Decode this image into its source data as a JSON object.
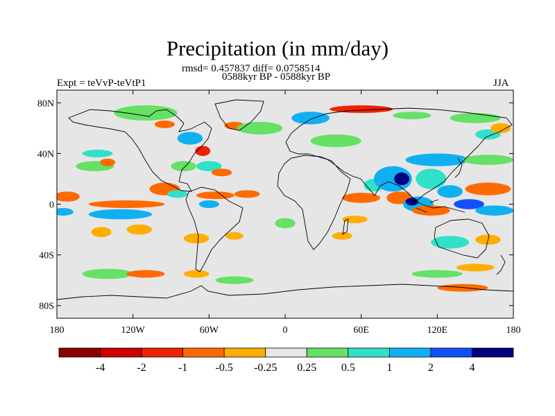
{
  "title": "Precipitation (in mm/day)",
  "stats": "rmsd= 0.457837 diff= 0.0758514",
  "period": "0588kyr BP - 0588kyr BP",
  "experiment": "Expt = teVvP-teVtP1",
  "season": "JJA",
  "chart_data": {
    "type": "heatmap",
    "projection": "cylindrical-equidistant",
    "xlim": [
      -180,
      180
    ],
    "ylim": [
      -90,
      90
    ],
    "x_ticks": [
      {
        "value": -180,
        "label": "180"
      },
      {
        "value": -120,
        "label": "120W"
      },
      {
        "value": -60,
        "label": "60W"
      },
      {
        "value": 0,
        "label": "0"
      },
      {
        "value": 60,
        "label": "60E"
      },
      {
        "value": 120,
        "label": "120E"
      },
      {
        "value": 180,
        "label": "180"
      }
    ],
    "y_ticks": [
      {
        "value": 80,
        "label": "80N"
      },
      {
        "value": 40,
        "label": "40N"
      },
      {
        "value": 0,
        "label": "0"
      },
      {
        "value": -40,
        "label": "40S"
      },
      {
        "value": -80,
        "label": "80S"
      }
    ],
    "colorbar": {
      "labels": [
        "-4",
        "-2",
        "-1",
        "-0.5",
        "-0.25",
        "0.25",
        "0.5",
        "1",
        "2",
        "4"
      ],
      "colors": [
        "#8b0000",
        "#cc0000",
        "#ee2200",
        "#ff6a00",
        "#ffae00",
        "#e6e6e6",
        "#66e066",
        "#30e0c8",
        "#10b0f0",
        "#1050ff",
        "#000080"
      ]
    },
    "background_color": "#e6e6e6",
    "anomalies": [
      {
        "lon": -172,
        "lat": 6,
        "rx": 10,
        "ry": 4,
        "bin": 3
      },
      {
        "lon": -175,
        "lat": -6,
        "rx": 8,
        "ry": 3,
        "bin": 8
      },
      {
        "lon": -150,
        "lat": 30,
        "rx": 15,
        "ry": 4,
        "bin": 6
      },
      {
        "lon": -148,
        "lat": 40,
        "rx": 12,
        "ry": 3,
        "bin": 7
      },
      {
        "lon": -140,
        "lat": 33,
        "rx": 6,
        "ry": 3,
        "bin": 3
      },
      {
        "lon": -125,
        "lat": 0,
        "rx": 30,
        "ry": 3,
        "bin": 3
      },
      {
        "lon": -130,
        "lat": -8,
        "rx": 25,
        "ry": 4,
        "bin": 8
      },
      {
        "lon": -95,
        "lat": 12,
        "rx": 12,
        "ry": 5,
        "bin": 3
      },
      {
        "lon": -85,
        "lat": 8,
        "rx": 8,
        "ry": 3,
        "bin": 7
      },
      {
        "lon": -55,
        "lat": 7,
        "rx": 15,
        "ry": 3,
        "bin": 3
      },
      {
        "lon": -60,
        "lat": 0,
        "rx": 8,
        "ry": 3,
        "bin": 8
      },
      {
        "lon": -115,
        "lat": -20,
        "rx": 10,
        "ry": 4,
        "bin": 4
      },
      {
        "lon": -145,
        "lat": -22,
        "rx": 8,
        "ry": 4,
        "bin": 4
      },
      {
        "lon": -70,
        "lat": -27,
        "rx": 10,
        "ry": 4,
        "bin": 4
      },
      {
        "lon": -40,
        "lat": -25,
        "rx": 7,
        "ry": 3,
        "bin": 4
      },
      {
        "lon": -140,
        "lat": -55,
        "rx": 20,
        "ry": 4,
        "bin": 6
      },
      {
        "lon": -110,
        "lat": -55,
        "rx": 15,
        "ry": 3,
        "bin": 3
      },
      {
        "lon": -70,
        "lat": -55,
        "rx": 10,
        "ry": 3,
        "bin": 4
      },
      {
        "lon": -40,
        "lat": -60,
        "rx": 15,
        "ry": 3,
        "bin": 6
      },
      {
        "lon": -110,
        "lat": 72,
        "rx": 25,
        "ry": 6,
        "bin": 6
      },
      {
        "lon": -95,
        "lat": 63,
        "rx": 8,
        "ry": 3,
        "bin": 3
      },
      {
        "lon": -75,
        "lat": 52,
        "rx": 10,
        "ry": 5,
        "bin": 8
      },
      {
        "lon": -65,
        "lat": 42,
        "rx": 6,
        "ry": 4,
        "bin": 2
      },
      {
        "lon": -60,
        "lat": 30,
        "rx": 10,
        "ry": 4,
        "bin": 7
      },
      {
        "lon": -80,
        "lat": 30,
        "rx": 10,
        "ry": 4,
        "bin": 6
      },
      {
        "lon": -50,
        "lat": 25,
        "rx": 8,
        "ry": 3,
        "bin": 3
      },
      {
        "lon": -40,
        "lat": 62,
        "rx": 8,
        "ry": 3,
        "bin": 3
      },
      {
        "lon": -20,
        "lat": 60,
        "rx": 18,
        "ry": 5,
        "bin": 6
      },
      {
        "lon": -30,
        "lat": 8,
        "rx": 10,
        "ry": 3,
        "bin": 3
      },
      {
        "lon": 0,
        "lat": -15,
        "rx": 8,
        "ry": 4,
        "bin": 6
      },
      {
        "lon": 20,
        "lat": 68,
        "rx": 15,
        "ry": 5,
        "bin": 8
      },
      {
        "lon": 60,
        "lat": 75,
        "rx": 25,
        "ry": 3,
        "bin": 2
      },
      {
        "lon": 40,
        "lat": 50,
        "rx": 20,
        "ry": 5,
        "bin": 6
      },
      {
        "lon": 60,
        "lat": 5,
        "rx": 15,
        "ry": 4,
        "bin": 3
      },
      {
        "lon": 55,
        "lat": -12,
        "rx": 10,
        "ry": 3,
        "bin": 4
      },
      {
        "lon": 45,
        "lat": -25,
        "rx": 8,
        "ry": 3,
        "bin": 4
      },
      {
        "lon": 70,
        "lat": 15,
        "rx": 8,
        "ry": 5,
        "bin": 7
      },
      {
        "lon": 85,
        "lat": 20,
        "rx": 15,
        "ry": 10,
        "bin": 8
      },
      {
        "lon": 92,
        "lat": 20,
        "rx": 6,
        "ry": 5,
        "bin": 10
      },
      {
        "lon": 90,
        "lat": 5,
        "rx": 10,
        "ry": 5,
        "bin": 3
      },
      {
        "lon": 105,
        "lat": 0,
        "rx": 12,
        "ry": 6,
        "bin": 8
      },
      {
        "lon": 100,
        "lat": 2,
        "rx": 5,
        "ry": 3,
        "bin": 10
      },
      {
        "lon": 115,
        "lat": -5,
        "rx": 15,
        "ry": 4,
        "bin": 3
      },
      {
        "lon": 115,
        "lat": 20,
        "rx": 12,
        "ry": 8,
        "bin": 7
      },
      {
        "lon": 120,
        "lat": 35,
        "rx": 25,
        "ry": 5,
        "bin": 8
      },
      {
        "lon": 130,
        "lat": 10,
        "rx": 10,
        "ry": 5,
        "bin": 8
      },
      {
        "lon": 145,
        "lat": 0,
        "rx": 12,
        "ry": 4,
        "bin": 9
      },
      {
        "lon": 160,
        "lat": 12,
        "rx": 18,
        "ry": 5,
        "bin": 3
      },
      {
        "lon": 165,
        "lat": -5,
        "rx": 15,
        "ry": 4,
        "bin": 8
      },
      {
        "lon": 160,
        "lat": 35,
        "rx": 20,
        "ry": 4,
        "bin": 6
      },
      {
        "lon": 130,
        "lat": -30,
        "rx": 15,
        "ry": 5,
        "bin": 7
      },
      {
        "lon": 160,
        "lat": -28,
        "rx": 10,
        "ry": 4,
        "bin": 4
      },
      {
        "lon": 150,
        "lat": -50,
        "rx": 15,
        "ry": 3,
        "bin": 4
      },
      {
        "lon": 120,
        "lat": -55,
        "rx": 20,
        "ry": 3,
        "bin": 6
      },
      {
        "lon": 140,
        "lat": -66,
        "rx": 20,
        "ry": 3,
        "bin": 3
      },
      {
        "lon": 100,
        "lat": 70,
        "rx": 15,
        "ry": 3,
        "bin": 6
      },
      {
        "lon": 150,
        "lat": 68,
        "rx": 20,
        "ry": 4,
        "bin": 6
      },
      {
        "lon": 160,
        "lat": 55,
        "rx": 10,
        "ry": 4,
        "bin": 7
      },
      {
        "lon": 170,
        "lat": 60,
        "rx": 8,
        "ry": 4,
        "bin": 4
      }
    ]
  }
}
